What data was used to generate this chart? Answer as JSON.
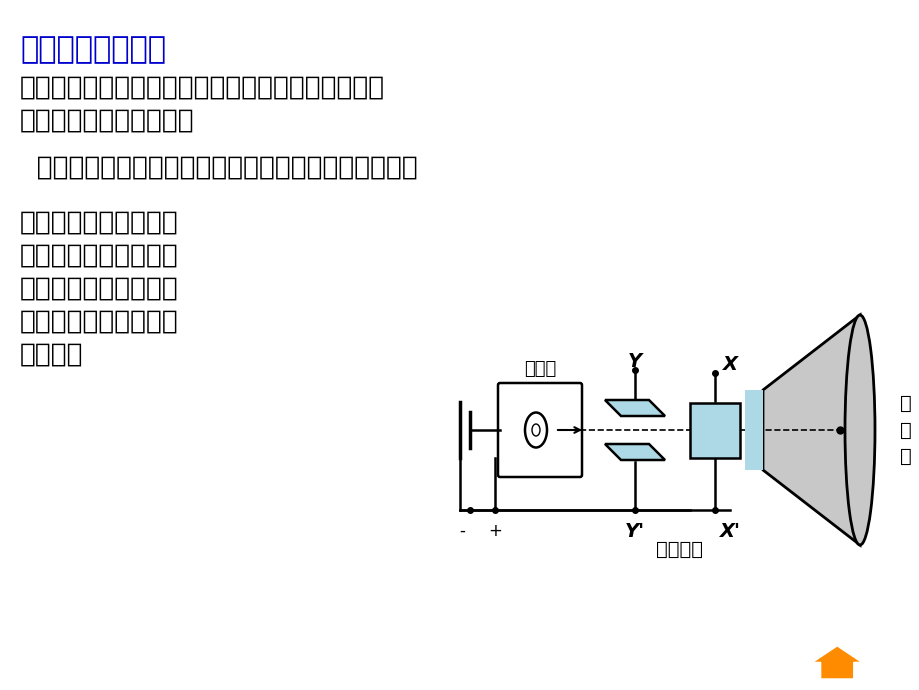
{
  "bg_color": "#FFFFFF",
  "title": "二、示波管的原理",
  "title_color": "#0000CC",
  "title_fontsize": 22,
  "line1": "利用两组正交的偏转极板，可以控制电子打在荧光屏",
  "line2": "上的位置。示意图如右：",
  "line3": "  两组偏转电极分别控制电子在水平、竖直方向的偏转。",
  "para1_line1": "一般在水平偏转电极上",
  "para1_line2": "加扫描电压（从左向右",
  "para1_line3": "周期性扫描），在竖直",
  "para1_line4": "偏转电极上加需要研究",
  "para1_line5": "的信号。",
  "text_color": "#000000",
  "text_fontsize": 19,
  "diagram_label_Y": "Y",
  "diagram_label_X": "X",
  "diagram_label_Yp": "Y'",
  "diagram_label_Xp": "X'",
  "diagram_label_gun": "电子枪",
  "diagram_label_screen": "荧\n光\n屏",
  "diagram_label_deflect": "偏转电极",
  "diagram_label_minus": "-",
  "diagram_label_plus": "+",
  "light_blue": "#ADD8E6",
  "dark_outline": "#000000",
  "gray_screen": "#C8C8C8"
}
